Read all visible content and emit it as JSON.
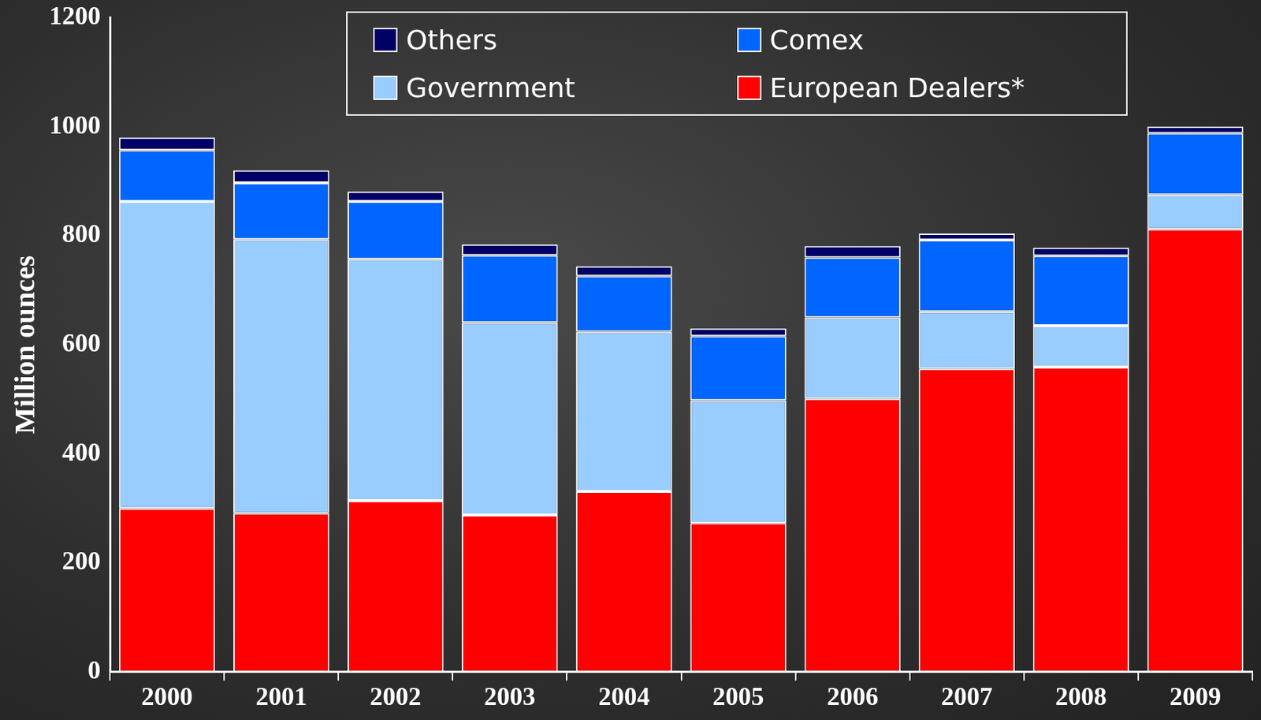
{
  "chart_data": {
    "type": "bar",
    "stacked": true,
    "legend": "top",
    "grid": false,
    "y_label": "Million ounces",
    "categories": [
      "2000",
      "2001",
      "2002",
      "2003",
      "2004",
      "2005",
      "2006",
      "2007",
      "2008",
      "2009"
    ],
    "ylim": [
      0,
      1200
    ],
    "yticks": [
      0,
      200,
      400,
      600,
      800,
      1000,
      1200
    ],
    "series": [
      {
        "name": "European Dealers*",
        "color": "#ff0000",
        "values": [
          300,
          291,
          314,
          288,
          331,
          273,
          501,
          556,
          559,
          812
        ]
      },
      {
        "name": "Government",
        "color": "#99ccff",
        "values": [
          563,
          502,
          443,
          353,
          293,
          225,
          149,
          105,
          76,
          63
        ]
      },
      {
        "name": "Comex",
        "color": "#0066ff",
        "values": [
          94,
          104,
          106,
          123,
          102,
          118,
          110,
          131,
          128,
          113
        ]
      },
      {
        "name": "Others",
        "color": "#000066",
        "values": [
          23,
          23,
          18,
          20,
          18,
          14,
          21,
          12,
          15,
          12
        ]
      }
    ]
  }
}
